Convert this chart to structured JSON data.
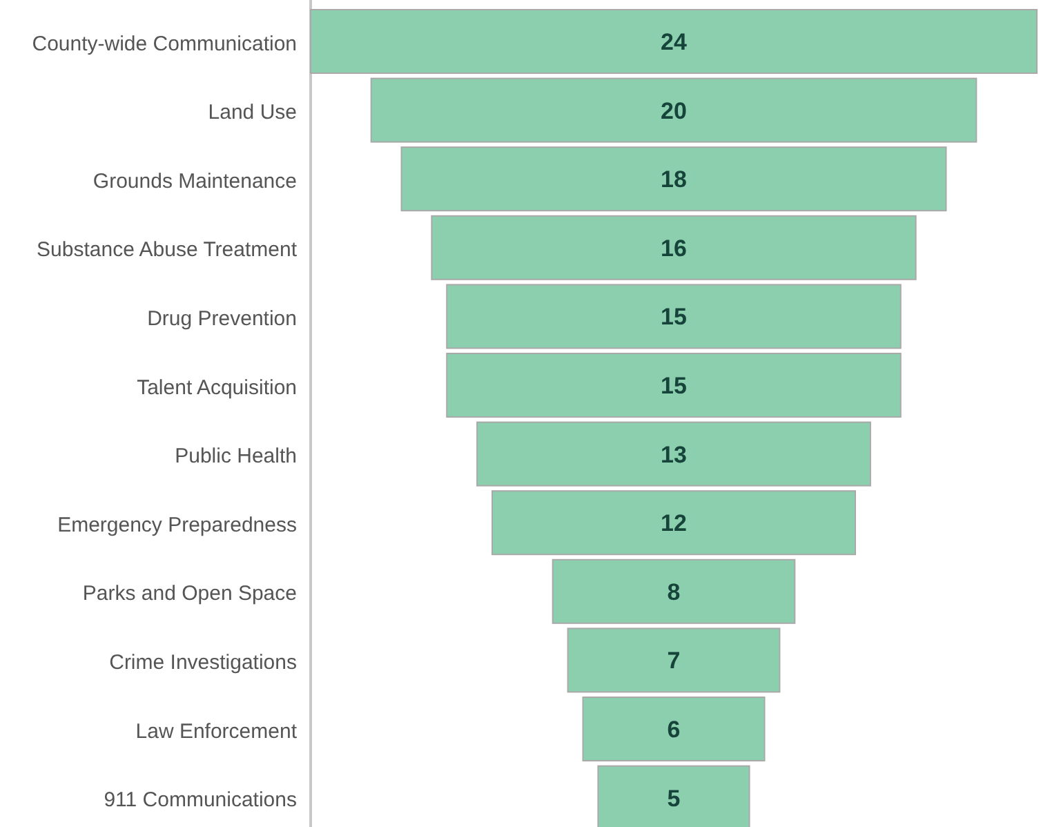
{
  "chart_data": {
    "type": "other",
    "categories": [
      "County-wide Communication",
      "Land Use",
      "Grounds Maintenance",
      "Substance Abuse Treatment",
      "Drug Prevention",
      "Talent Acquisition",
      "Public Health",
      "Emergency Preparedness",
      "Parks and Open Space",
      "Crime Investigations",
      "Law Enforcement",
      "911 Communications"
    ],
    "values": [
      24,
      20,
      18,
      16,
      15,
      15,
      13,
      12,
      8,
      7,
      6,
      5
    ],
    "color": "#8ccfae",
    "data_labels": true
  }
}
